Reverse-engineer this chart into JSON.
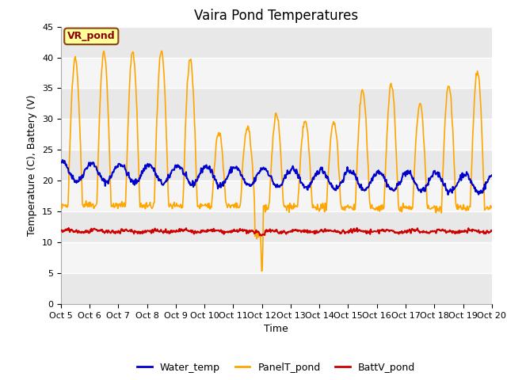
{
  "title": "Vaira Pond Temperatures",
  "xlabel": "Time",
  "ylabel": "Temperature (C), Battery (V)",
  "annotation": "VR_pond",
  "ylim": [
    0,
    45
  ],
  "ytick_values": [
    0,
    5,
    10,
    15,
    20,
    25,
    30,
    35,
    40,
    45
  ],
  "xtick_labels": [
    "Oct 5",
    "Oct 6",
    "Oct 7",
    "Oct 8",
    "Oct 9",
    "Oct 10",
    "Oct 11",
    "Oct 12",
    "Oct 13",
    "Oct 14",
    "Oct 15",
    "Oct 16",
    "Oct 17",
    "Oct 18",
    "Oct 19",
    "Oct 20"
  ],
  "water_color": "#0000cc",
  "panel_color": "#ffa500",
  "batt_color": "#cc0000",
  "legend_labels": [
    "Water_temp",
    "PanelT_pond",
    "BattV_pond"
  ],
  "fig_bg": "#ffffff",
  "plot_bg": "#ffffff",
  "band_light": "#e8e8e8",
  "band_dark": "#d0d0d0",
  "title_fontsize": 12,
  "axis_label_fontsize": 9,
  "tick_fontsize": 8,
  "legend_fontsize": 9,
  "annotation_fontsize": 9
}
